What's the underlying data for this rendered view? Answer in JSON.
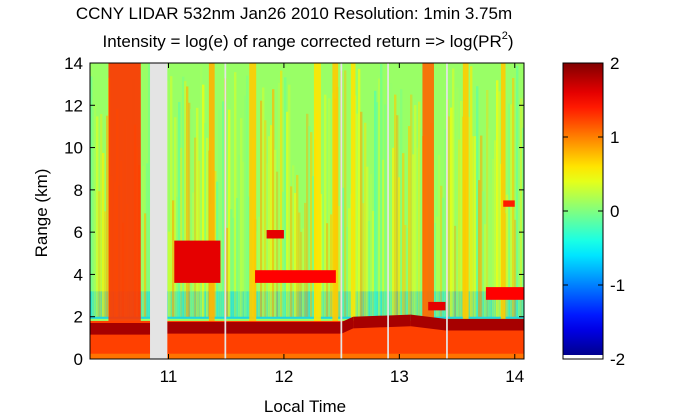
{
  "chart_data": {
    "type": "heatmap",
    "title_line1": "CCNY LIDAR 532nm Jan26 2010 Resolution: 1min 3.75m",
    "title_line2_main": "Intensity = log(e) of range corrected return => log(PR",
    "title_line2_sup": "2",
    "title_line2_end": ")",
    "xlabel": "Local Time",
    "ylabel": "Range (km)",
    "xlim": [
      10.32,
      14.08
    ],
    "ylim": [
      0,
      14
    ],
    "x_ticks": [
      "11",
      "12",
      "13",
      "14"
    ],
    "x_tick_values": [
      11,
      12,
      13,
      14
    ],
    "y_ticks": [
      "0",
      "2",
      "4",
      "6",
      "8",
      "10",
      "12",
      "14"
    ],
    "y_tick_values": [
      0,
      2,
      4,
      6,
      8,
      10,
      12,
      14
    ],
    "colorbar": {
      "range": [
        -2,
        2
      ],
      "ticks": [
        "-2",
        "-1",
        "0",
        "1",
        "2"
      ],
      "tick_values": [
        -2,
        -1,
        0,
        1,
        2
      ],
      "colormap": "jet"
    },
    "gaps": [
      {
        "x0": 10.84,
        "x1": 10.99
      },
      {
        "x0": 11.485,
        "x1": 11.5
      },
      {
        "x0": 12.49,
        "x1": 12.505
      },
      {
        "x0": 12.895,
        "x1": 12.91
      },
      {
        "x0": 13.405,
        "x1": 13.42
      }
    ],
    "boundary_layer_top_km": [
      {
        "x": 10.32,
        "y": 1.7
      },
      {
        "x": 10.84,
        "y": 1.7
      },
      {
        "x": 10.99,
        "y": 1.75
      },
      {
        "x": 12.5,
        "y": 1.75
      },
      {
        "x": 12.6,
        "y": 2.0
      },
      {
        "x": 13.1,
        "y": 2.1
      },
      {
        "x": 13.4,
        "y": 1.9
      },
      {
        "x": 14.08,
        "y": 1.9
      }
    ],
    "cloud_layers": [
      {
        "x0": 11.05,
        "x1": 11.45,
        "y0": 3.6,
        "y1": 5.6,
        "level": 1.6
      },
      {
        "x0": 11.75,
        "x1": 12.45,
        "y0": 3.6,
        "y1": 4.2,
        "level": 1.5
      },
      {
        "x0": 11.85,
        "x1": 12.0,
        "y0": 5.7,
        "y1": 6.1,
        "level": 1.6
      },
      {
        "x0": 13.25,
        "x1": 13.4,
        "y0": 2.3,
        "y1": 2.7,
        "level": 1.6
      },
      {
        "x0": 13.75,
        "x1": 14.08,
        "y0": 2.8,
        "y1": 3.4,
        "level": 1.5
      },
      {
        "x0": 13.9,
        "x1": 14.0,
        "y0": 7.2,
        "y1": 7.5,
        "level": 1.4
      }
    ],
    "bright_columns": [
      {
        "x0": 10.48,
        "x1": 10.76,
        "level": 1.3
      },
      {
        "x0": 11.35,
        "x1": 11.4,
        "level": 0.8
      },
      {
        "x0": 11.7,
        "x1": 11.76,
        "level": 0.7
      },
      {
        "x0": 12.26,
        "x1": 12.32,
        "level": 0.6
      },
      {
        "x0": 12.42,
        "x1": 12.47,
        "level": 0.7
      },
      {
        "x0": 12.58,
        "x1": 12.62,
        "level": 0.6
      },
      {
        "x0": 13.2,
        "x1": 13.3,
        "level": 1.1
      },
      {
        "x0": 13.55,
        "x1": 13.6,
        "level": 0.7
      },
      {
        "x0": 13.88,
        "x1": 13.92,
        "level": 0.7
      }
    ]
  }
}
